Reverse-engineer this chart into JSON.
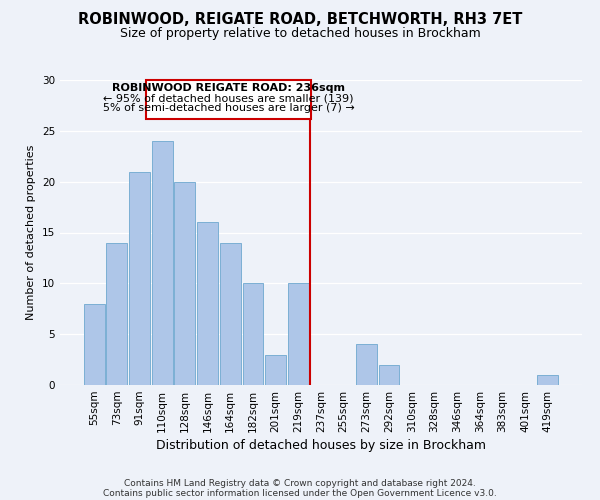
{
  "title": "ROBINWOOD, REIGATE ROAD, BETCHWORTH, RH3 7ET",
  "subtitle": "Size of property relative to detached houses in Brockham",
  "xlabel": "Distribution of detached houses by size in Brockham",
  "ylabel": "Number of detached properties",
  "bar_labels": [
    "55sqm",
    "73sqm",
    "91sqm",
    "110sqm",
    "128sqm",
    "146sqm",
    "164sqm",
    "182sqm",
    "201sqm",
    "219sqm",
    "237sqm",
    "255sqm",
    "273sqm",
    "292sqm",
    "310sqm",
    "328sqm",
    "346sqm",
    "364sqm",
    "383sqm",
    "401sqm",
    "419sqm"
  ],
  "bar_values": [
    8,
    14,
    21,
    24,
    20,
    16,
    14,
    10,
    3,
    10,
    0,
    0,
    4,
    2,
    0,
    0,
    0,
    0,
    0,
    0,
    1
  ],
  "bar_color": "#aec6e8",
  "bar_edge_color": "#7bafd4",
  "vline_x_index": 10,
  "vline_color": "#cc0000",
  "ylim": [
    0,
    30
  ],
  "yticks": [
    0,
    5,
    10,
    15,
    20,
    25,
    30
  ],
  "annotation_title": "ROBINWOOD REIGATE ROAD: 236sqm",
  "annotation_line1": "← 95% of detached houses are smaller (139)",
  "annotation_line2": "5% of semi-detached houses are larger (7) →",
  "annotation_box_color": "#ffffff",
  "annotation_box_edge": "#cc0000",
  "footer_line1": "Contains HM Land Registry data © Crown copyright and database right 2024.",
  "footer_line2": "Contains public sector information licensed under the Open Government Licence v3.0.",
  "background_color": "#eef2f9",
  "grid_color": "#ffffff",
  "title_fontsize": 10.5,
  "subtitle_fontsize": 9,
  "xlabel_fontsize": 9,
  "ylabel_fontsize": 8,
  "tick_fontsize": 7.5,
  "annotation_fontsize": 8,
  "footer_fontsize": 6.5
}
